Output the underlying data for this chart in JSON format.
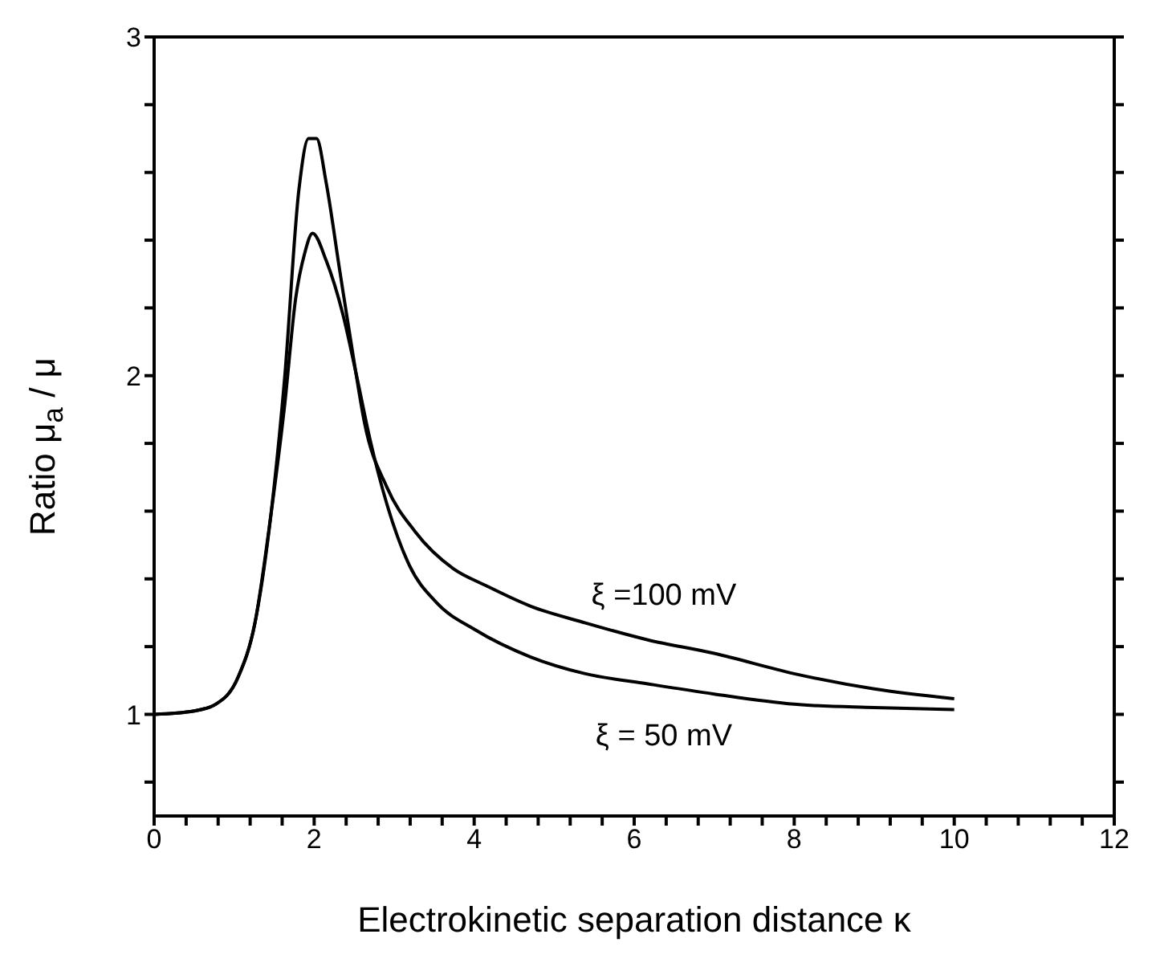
{
  "chart_data": {
    "type": "line",
    "xlabel": "Electrokinetic separation distance κ",
    "ylabel": "Ratio μ$_{a}$ / μ",
    "xlim": [
      0,
      12
    ],
    "ylim": [
      0.7,
      3
    ],
    "xticks": [
      0,
      {
        "value": 0.4,
        "label": null
      },
      {
        "value": 0.8,
        "label": null
      },
      {
        "value": 1.2,
        "label": null
      },
      {
        "value": 1.6,
        "label": null
      },
      2,
      {
        "value": 2.4,
        "label": null
      },
      {
        "value": 2.8,
        "label": null
      },
      {
        "value": 3.2,
        "label": null
      },
      {
        "value": 3.6,
        "label": null
      },
      4,
      {
        "value": 4.4,
        "label": null
      },
      {
        "value": 4.8,
        "label": null
      },
      {
        "value": 5.2,
        "label": null
      },
      {
        "value": 5.6,
        "label": null
      },
      6,
      {
        "value": 6.4,
        "label": null
      },
      {
        "value": 6.8,
        "label": null
      },
      {
        "value": 7.2,
        "label": null
      },
      {
        "value": 7.6,
        "label": null
      },
      8,
      {
        "value": 8.4,
        "label": null
      },
      {
        "value": 8.8,
        "label": null
      },
      {
        "value": 9.2,
        "label": null
      },
      {
        "value": 9.6,
        "label": null
      },
      10,
      {
        "value": 10.4,
        "label": null
      },
      {
        "value": 10.8,
        "label": null
      },
      {
        "value": 11.2,
        "label": null
      },
      {
        "value": 11.6,
        "label": null
      },
      12
    ],
    "yticks": [
      {
        "value": 0.8,
        "label": null
      },
      1,
      {
        "value": 1.2,
        "label": null
      },
      {
        "value": 1.4,
        "label": null
      },
      {
        "value": 1.6,
        "label": null
      },
      {
        "value": 1.8,
        "label": null
      },
      2,
      {
        "value": 2.2,
        "label": null
      },
      {
        "value": 2.4,
        "label": null
      },
      {
        "value": 2.6,
        "label": null
      },
      {
        "value": 2.8,
        "label": null
      },
      3
    ],
    "grid": false,
    "marker": "none",
    "line_style": "solid",
    "series": [
      {
        "name": "ξ =100 mV",
        "color": "#000000",
        "x": [
          0,
          0.5,
          0.77,
          1.05,
          1.26,
          1.46,
          1.63,
          1.81,
          1.93,
          2.03,
          2.15,
          2.32,
          2.5,
          2.63,
          2.91,
          3.26,
          3.74,
          4.15,
          4.7,
          5.39,
          6.17,
          7,
          8,
          9,
          10
        ],
        "values": [
          1,
          1.01,
          1.03,
          1.11,
          1.27,
          1.59,
          1.99,
          2.55,
          2.7,
          2.7,
          2.57,
          2.31,
          2.04,
          1.86,
          1.67,
          1.54,
          1.43,
          1.38,
          1.32,
          1.27,
          1.22,
          1.18,
          1.12,
          1.075,
          1.046
        ]
      },
      {
        "name": "ξ = 50 mV",
        "color": "#000000",
        "x": [
          0,
          0.5,
          0.77,
          1.05,
          1.26,
          1.46,
          1.63,
          1.77,
          1.88,
          1.98,
          2.15,
          2.36,
          2.53,
          2.7,
          2.91,
          3.19,
          3.53,
          4.01,
          4.7,
          5.39,
          6.17,
          7,
          8,
          9,
          10
        ],
        "values": [
          1,
          1.01,
          1.03,
          1.11,
          1.27,
          1.59,
          1.91,
          2.23,
          2.36,
          2.42,
          2.34,
          2.18,
          2,
          1.81,
          1.62,
          1.44,
          1.33,
          1.25,
          1.17,
          1.12,
          1.09,
          1.06,
          1.03,
          1.02,
          1.014
        ]
      }
    ]
  }
}
